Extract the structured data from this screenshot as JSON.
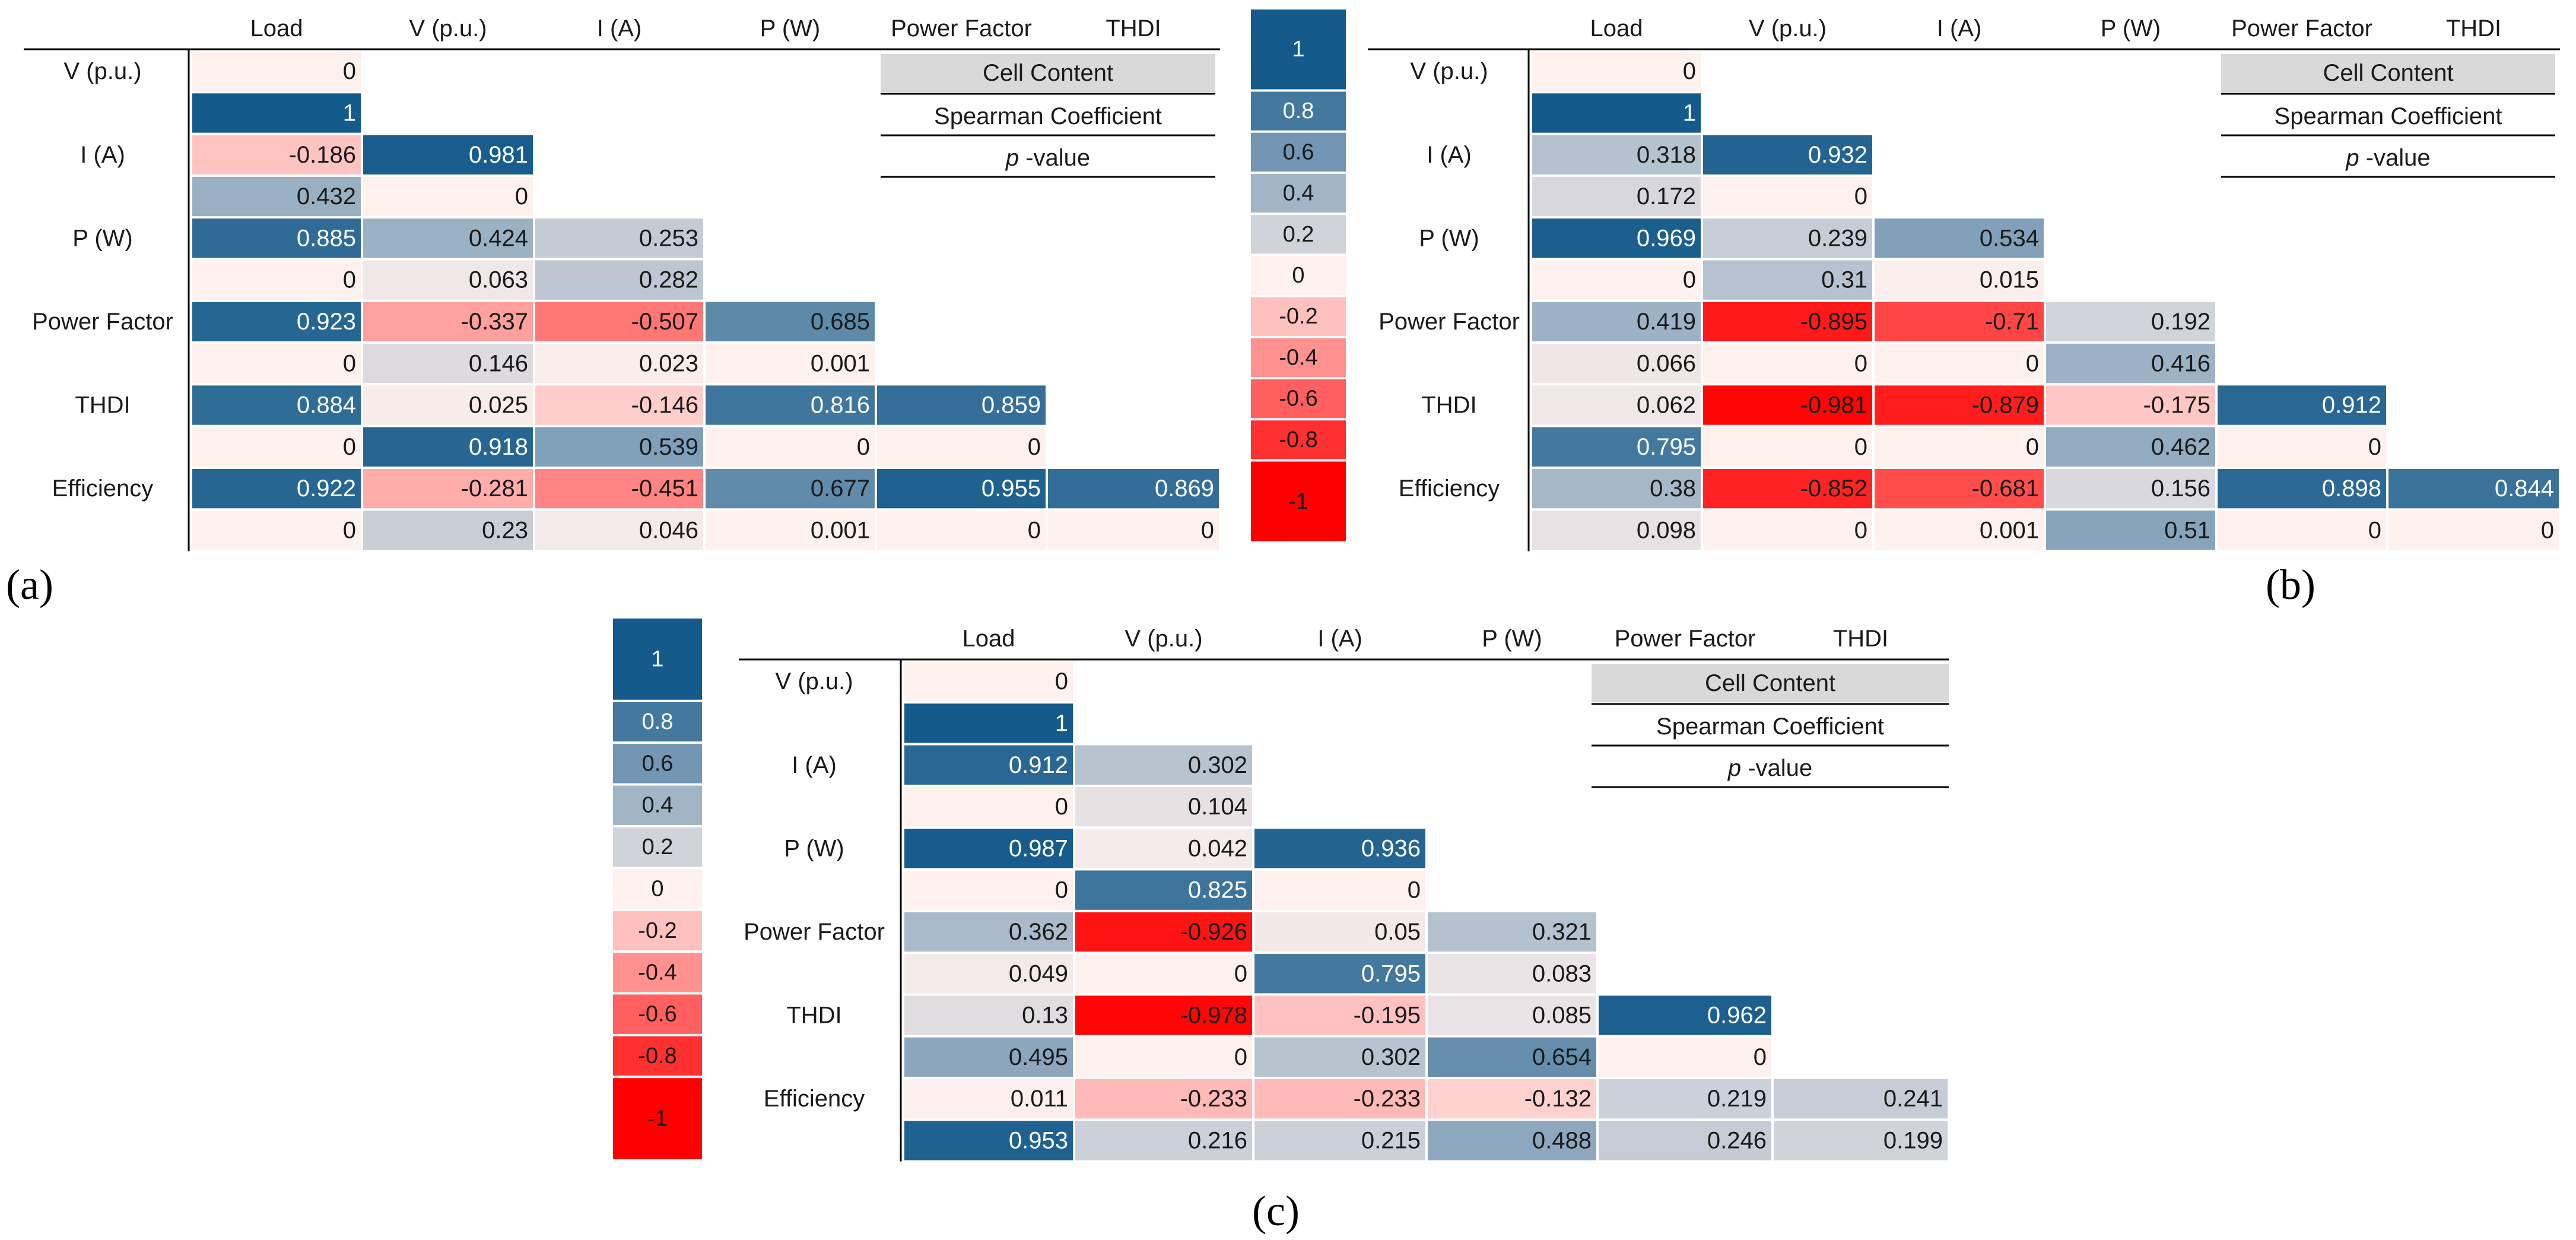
{
  "legend_scale": {
    "labels": [
      "1",
      "0.8",
      "0.6",
      "0.4",
      "0.2",
      "0",
      "-0.2",
      "-0.4",
      "-0.6",
      "-0.8",
      "-1"
    ],
    "values": [
      1,
      0.8,
      0.6,
      0.4,
      0.2,
      0,
      -0.2,
      -0.4,
      -0.6,
      -0.8,
      -1
    ]
  },
  "colors": {
    "positive": "#145A8B",
    "neutral": "#FFF1EE",
    "negative": "#FF0000",
    "text": "#1a1a1a",
    "key_header_bg": "#d9d9d9"
  },
  "key": {
    "cell_content": "Cell Content",
    "spearman": "Spearman Coefficient",
    "pvalue_italic": "p",
    "pvalue_rest": "-value"
  },
  "chart_data": [
    {
      "type": "heatmap",
      "caption": "(a)",
      "columns": [
        "Load",
        "V (p.u.)",
        "I (A)",
        "P (W)",
        "Power Factor",
        "THDI"
      ],
      "rows": [
        "V (p.u.)",
        "I (A)",
        "P (W)",
        "Power Factor",
        "THDI",
        "Efficiency"
      ],
      "coefficient_labels": [
        [
          "0"
        ],
        [
          "-0.186",
          "0.981"
        ],
        [
          "0.885",
          "0.424",
          "0.253"
        ],
        [
          "0.923",
          "-0.337",
          "-0.507",
          "0.685"
        ],
        [
          "0.884",
          "0.025",
          "-0.146",
          "0.816",
          "0.859"
        ],
        [
          "0.922",
          "-0.281",
          "-0.451",
          "0.677",
          "0.955",
          "0.869"
        ]
      ],
      "pvalue_labels": [
        [
          "1"
        ],
        [
          "0.432",
          "0"
        ],
        [
          "0",
          "0.063",
          "0.282"
        ],
        [
          "0",
          "0.146",
          "0.023",
          "0.001"
        ],
        [
          "0",
          "0.918",
          "0.539",
          "0",
          "0"
        ],
        [
          "0",
          "0.23",
          "0.046",
          "0.001",
          "0",
          "0"
        ]
      ]
    },
    {
      "type": "heatmap",
      "caption": "(b)",
      "columns": [
        "Load",
        "V (p.u.)",
        "I (A)",
        "P (W)",
        "Power Factor",
        "THDI"
      ],
      "rows": [
        "V (p.u.)",
        "I (A)",
        "P (W)",
        "Power Factor",
        "THDI",
        "Efficiency"
      ],
      "coefficient_labels": [
        [
          "0"
        ],
        [
          "0.318",
          "0.932"
        ],
        [
          "0.969",
          "0.239",
          "0.534"
        ],
        [
          "0.419",
          "-0.895",
          "-0.71",
          "0.192"
        ],
        [
          "0.062",
          "-0.981",
          "-0.879",
          "-0.175",
          "0.912"
        ],
        [
          "0.38",
          "-0.852",
          "-0.681",
          "0.156",
          "0.898",
          "0.844"
        ]
      ],
      "pvalue_labels": [
        [
          "1"
        ],
        [
          "0.172",
          "0"
        ],
        [
          "0",
          "0.31",
          "0.015"
        ],
        [
          "0.066",
          "0",
          "0",
          "0.416"
        ],
        [
          "0.795",
          "0",
          "0",
          "0.462",
          "0"
        ],
        [
          "0.098",
          "0",
          "0.001",
          "0.51",
          "0",
          "0"
        ]
      ]
    },
    {
      "type": "heatmap",
      "caption": "(c)",
      "columns": [
        "Load",
        "V (p.u.)",
        "I (A)",
        "P (W)",
        "Power Factor",
        "THDI"
      ],
      "rows": [
        "V (p.u.)",
        "I (A)",
        "P (W)",
        "Power Factor",
        "THDI",
        "Efficiency"
      ],
      "coefficient_labels": [
        [
          "0"
        ],
        [
          "0.912",
          "0.302"
        ],
        [
          "0.987",
          "0.042",
          "0.936"
        ],
        [
          "0.362",
          "-0.926",
          "0.05",
          "0.321"
        ],
        [
          "0.13",
          "-0.978",
          "-0.195",
          "0.085",
          "0.962"
        ],
        [
          "0.011",
          "-0.233",
          "-0.233",
          "-0.132",
          "0.219",
          "0.241"
        ]
      ],
      "pvalue_labels": [
        [
          "1"
        ],
        [
          "0",
          "0.104"
        ],
        [
          "0",
          "0.825",
          "0"
        ],
        [
          "0.049",
          "0",
          "0.795",
          "0.083"
        ],
        [
          "0.495",
          "0",
          "0.302",
          "0.654",
          "0"
        ],
        [
          "0.953",
          "0.216",
          "0.215",
          "0.488",
          "0.246",
          "0.199"
        ]
      ]
    }
  ]
}
